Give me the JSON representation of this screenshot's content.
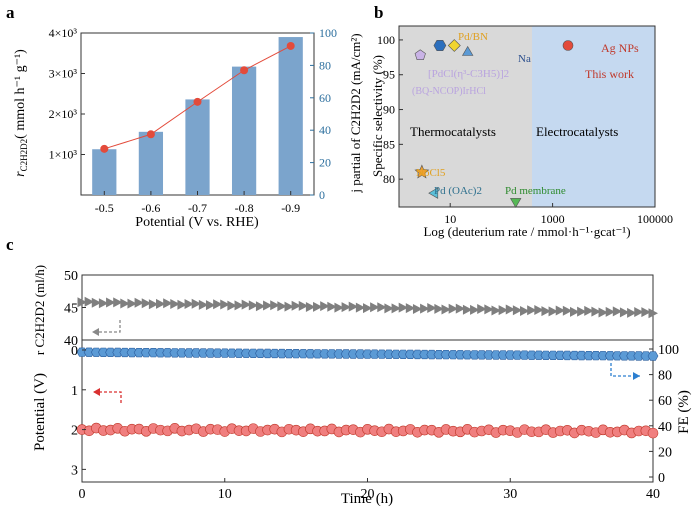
{
  "chart_data": [
    {
      "panel": "a",
      "type": "bar",
      "categories": [
        "-0.5",
        "-0.6",
        "-0.7",
        "-0.8",
        "-0.9"
      ],
      "bars": {
        "name": "r_C2H2D2",
        "values": [
          1130,
          1560,
          2360,
          3170,
          3900
        ],
        "color": "#7ba4cc"
      },
      "line": {
        "name": "j partial of C2H2D2",
        "values": [
          28.5,
          37.5,
          57.5,
          77,
          92
        ],
        "color": "#e34b3b"
      },
      "xlabel": "Potential (V vs. RHE)",
      "ylabel": "r C2H2D2 (mmol h-1 g-1)",
      "y2label": "j partial of C2H2D2 (mA/cm2)",
      "ylim": [
        0,
        4000
      ],
      "y2lim": [
        0,
        100
      ],
      "y_ticks": [
        "1×10³",
        "2×10³",
        "3×10³",
        "4×10³"
      ],
      "y2_ticks": [
        "0",
        "20",
        "40",
        "60",
        "80",
        "100"
      ]
    },
    {
      "panel": "b",
      "type": "scatter",
      "xlabel": "Log (deuterium rate / mmol·h⁻¹·gcat⁻¹)",
      "ylabel": "Specific selectivity (%)",
      "xlim": [
        1,
        100000
      ],
      "ylim": [
        76,
        102
      ],
      "x_ticks": [
        "10",
        "1000",
        "100000"
      ],
      "y_ticks": [
        "80",
        "85",
        "90",
        "95",
        "100"
      ],
      "region_labels": [
        "Thermocatalysts",
        "Electrocatalysts"
      ],
      "points": [
        {
          "label": "[PdCl(η³-C3H5)]2",
          "x": 2.6,
          "y": 97.8,
          "color": "#c9b3e6",
          "marker": "pentagon"
        },
        {
          "label": "Pd/BN",
          "x": 6.3,
          "y": 99.2,
          "color": "#2c6fbd",
          "marker": "hexagon"
        },
        {
          "label": "Pd/BN",
          "x": 12,
          "y": 99.2,
          "color": "#f0d530",
          "marker": "diamond"
        },
        {
          "label": "Na",
          "x": 22,
          "y": 98.2,
          "color": "#5b9ad5",
          "marker": "triangle"
        },
        {
          "label": "Ag NPs",
          "x": 2000,
          "y": 99.2,
          "color": "#e34b3b",
          "marker": "circle"
        },
        {
          "label": "NbCl5",
          "x": 2.8,
          "y": 81.0,
          "color": "#f0a030",
          "marker": "star"
        },
        {
          "label": "Pd (OAc)2",
          "x": 5.0,
          "y": 78.0,
          "color": "#5bbfd8",
          "marker": "triangle-left"
        },
        {
          "label": "Pd membrane",
          "x": 190,
          "y": 76.8,
          "color": "#56b856",
          "marker": "triangle-down"
        }
      ],
      "annotations": {
        "pdbn": "Pd/BN",
        "na": "Na",
        "agnps": "Ag NPs",
        "this_work": "This work",
        "pdcl": "[PdCl(η³-C3H5)]2",
        "bqnc": "(BQ-NCOP)IrHCl",
        "nbcl": "NbCl5",
        "pdoac": "Pd (OAc)2",
        "pdmem": "Pd membrane"
      }
    },
    {
      "panel": "c",
      "type": "line",
      "xlabel": "Time (h)",
      "xlim": [
        0,
        40
      ],
      "x_ticks": [
        "0",
        "10",
        "20",
        "30",
        "40"
      ],
      "series": [
        {
          "name": "r C2H2D2 (ml/h)",
          "axis": "top",
          "start": 45.8,
          "end": 44.2,
          "ylim": [
            40,
            50
          ],
          "y_ticks": [
            "40",
            "45",
            "50"
          ],
          "color": "#7f7f7f",
          "marker": "triangle-right"
        },
        {
          "name": "FE (%)",
          "axis": "right",
          "start": 97.5,
          "end": 94.5,
          "ylim": [
            0,
            100
          ],
          "y_ticks": [
            "0",
            "20",
            "40",
            "60",
            "80",
            "100"
          ],
          "color": "#5b9ad5",
          "marker": "hexagon"
        },
        {
          "name": "Potential (V)",
          "axis": "left",
          "start": -2.0,
          "end": -2.05,
          "ylim": [
            -3.5,
            0
          ],
          "y_ticks": [
            "0",
            "1",
            "2",
            "3"
          ],
          "color": "#f07f7f",
          "marker": "circle"
        }
      ],
      "ylabel_top": "r C2H2D2 (ml/h)",
      "ylabel_left": "Potential (V)",
      "ylabel_right": "FE (%)"
    }
  ],
  "panel_labels": {
    "a": "a",
    "b": "b",
    "c": "c"
  },
  "labels": {
    "a_ylabel": "r",
    "a_ylabel_sub": "C2H2D2",
    "a_ylabel_unit": "( mmol h⁻¹ g⁻¹)",
    "a_y2label": "j partial  of C2H2D2 (mA/cm²)",
    "a_xlabel": "Potential (V vs. RHE)",
    "b_ylabel": "Specific selectivity (%)",
    "b_xlabel": "Log (deuterium rate / mmol·h⁻¹·gcat⁻¹)",
    "b_thermo": "Thermocatalysts",
    "b_electro": "Electrocatalysts",
    "c_top_ylabel": "r C2H2D2 (ml/h)",
    "c_left_ylabel": "Potential (V)",
    "c_right_ylabel": "FE (%)",
    "c_xlabel": "Time (h)"
  }
}
